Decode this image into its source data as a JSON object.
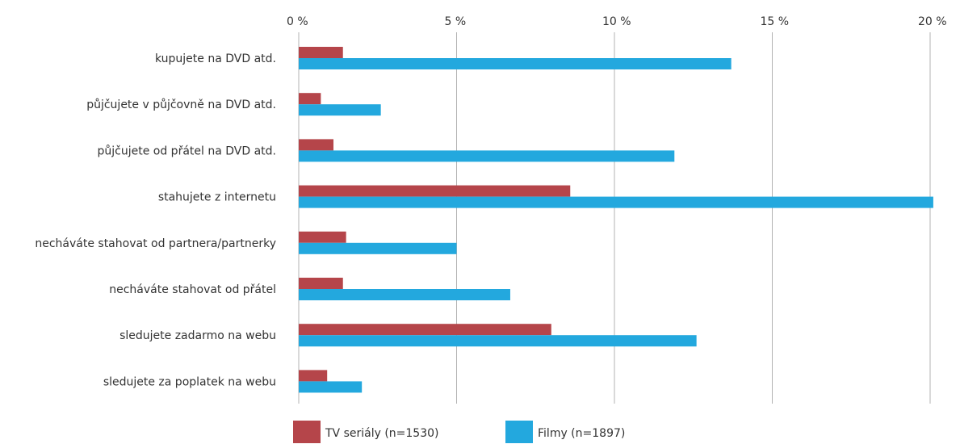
{
  "chart_data": {
    "type": "bar",
    "orientation": "horizontal",
    "categories": [
      "kupujete na DVD atd.",
      "půjčujete v půjčovně na DVD atd.",
      "půjčujete od přátel na DVD atd.",
      "stahujete z internetu",
      "necháváte stahovat od partnera/partnerky",
      "necháváte stahovat od přátel",
      "sledujete zadarmo na webu",
      "sledujete za poplatek na webu"
    ],
    "series": [
      {
        "name": "TV seriály (n=1530)",
        "color": "#b5454a",
        "values": [
          1.4,
          0.7,
          1.1,
          8.6,
          1.5,
          1.4,
          8.0,
          0.9
        ]
      },
      {
        "name": "Filmy (n=1897)",
        "color": "#23a8de",
        "values": [
          13.7,
          2.6,
          11.9,
          20.1,
          5.0,
          6.7,
          12.6,
          2.0
        ]
      }
    ],
    "xlim": [
      0,
      20
    ],
    "ticks": [
      0,
      5,
      10,
      15,
      20
    ],
    "tick_labels": [
      "0 %",
      "5 %",
      "10 %",
      "15 %",
      "20 %"
    ],
    "grid": true,
    "legend_position": "bottom"
  }
}
